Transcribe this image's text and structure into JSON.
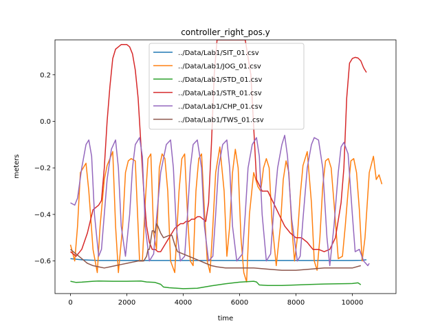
{
  "chart_data": {
    "type": "line",
    "title": "controller_right_pos.y",
    "xlabel": "time",
    "ylabel": "meters",
    "xlim": [
      -550,
      11550
    ],
    "ylim": [
      -0.74,
      0.35
    ],
    "xticks": [
      0,
      2000,
      4000,
      6000,
      8000,
      10000
    ],
    "xtick_labels": [
      "0",
      "2000",
      "4000",
      "6000",
      "8000",
      "10000"
    ],
    "yticks": [
      -0.6,
      -0.4,
      -0.2,
      0.0,
      0.2
    ],
    "ytick_labels": [
      "−0.6",
      "−0.4",
      "−0.2",
      "0.0",
      "0.2"
    ],
    "grid": false,
    "legend_position": "upper center",
    "series": [
      {
        "name": "../Data/Lab1/SIT_01.csv",
        "color": "#1f77b4",
        "x": [
          0,
          400,
          1000,
          2000,
          3000,
          4000,
          5000,
          6000,
          7000,
          8000,
          9000,
          10000,
          10300,
          10500
        ],
        "y": [
          -0.59,
          -0.595,
          -0.598,
          -0.598,
          -0.598,
          -0.598,
          -0.598,
          -0.598,
          -0.598,
          -0.598,
          -0.598,
          -0.598,
          -0.597,
          -0.595
        ]
      },
      {
        "name": "../Data/Lab1/JOG_01.csv",
        "color": "#ff7f0e",
        "x": [
          0,
          150,
          250,
          350,
          450,
          550,
          650,
          800,
          950,
          1050,
          1200,
          1300,
          1400,
          1500,
          1600,
          1700,
          1850,
          1950,
          2050,
          2150,
          2300,
          2450,
          2550,
          2650,
          2750,
          2850,
          2950,
          3050,
          3150,
          3250,
          3350,
          3450,
          3550,
          3700,
          3850,
          3950,
          4050,
          4150,
          4250,
          4350,
          4450,
          4550,
          4650,
          4750,
          4850,
          4950,
          5050,
          5150,
          5300,
          5450,
          5550,
          5650,
          5750,
          5850,
          5950,
          6050,
          6150,
          6250,
          6350,
          6500,
          6650,
          6750,
          6850,
          6950,
          7050,
          7150,
          7300,
          7450,
          7550,
          7650,
          7750,
          7850,
          7950,
          8050,
          8150,
          8250,
          8400,
          8550,
          8650,
          8750,
          8850,
          8950,
          9050,
          9150,
          9250,
          9350,
          9500,
          9650,
          9750,
          9850,
          9950,
          10050,
          10150,
          10250,
          10350,
          10450,
          10600,
          10750,
          10850,
          10950,
          11050
        ],
        "y": [
          -0.53,
          -0.6,
          -0.45,
          -0.22,
          -0.2,
          -0.18,
          -0.3,
          -0.55,
          -0.65,
          -0.45,
          -0.25,
          -0.19,
          -0.16,
          -0.13,
          -0.45,
          -0.65,
          -0.45,
          -0.22,
          -0.17,
          -0.16,
          -0.17,
          -0.6,
          -0.6,
          -0.35,
          -0.16,
          -0.14,
          -0.48,
          -0.55,
          -0.2,
          -0.14,
          -0.16,
          -0.3,
          -0.6,
          -0.65,
          -0.3,
          -0.16,
          -0.14,
          -0.4,
          -0.6,
          -0.62,
          -0.3,
          -0.16,
          -0.14,
          -0.38,
          -0.6,
          -0.65,
          -0.45,
          -0.22,
          -0.11,
          -0.3,
          -0.58,
          -0.45,
          -0.22,
          -0.12,
          -0.2,
          -0.5,
          -0.65,
          -0.69,
          -0.4,
          -0.22,
          -0.28,
          -0.3,
          -0.2,
          -0.16,
          -0.2,
          -0.43,
          -0.62,
          -0.45,
          -0.25,
          -0.17,
          -0.22,
          -0.45,
          -0.6,
          -0.5,
          -0.32,
          -0.19,
          -0.13,
          -0.35,
          -0.6,
          -0.64,
          -0.5,
          -0.28,
          -0.17,
          -0.16,
          -0.2,
          -0.35,
          -0.59,
          -0.58,
          -0.45,
          -0.3,
          -0.17,
          -0.16,
          -0.22,
          -0.38,
          -0.6,
          -0.5,
          -0.22,
          -0.15,
          -0.25,
          -0.23,
          -0.27
        ]
      },
      {
        "name": "../Data/Lab1/STD_01.csv",
        "color": "#2ca02c",
        "x": [
          0,
          200,
          400,
          600,
          800,
          1000,
          1500,
          2000,
          2500,
          2700,
          3000,
          3200,
          3300,
          3500,
          4000,
          4500,
          5000,
          5500,
          6000,
          6500,
          6600,
          6700,
          7000,
          7500,
          8000,
          8500,
          9000,
          9500,
          10000,
          10200,
          10300
        ],
        "y": [
          -0.687,
          -0.692,
          -0.691,
          -0.689,
          -0.687,
          -0.686,
          -0.687,
          -0.687,
          -0.686,
          -0.69,
          -0.692,
          -0.7,
          -0.712,
          -0.715,
          -0.719,
          -0.717,
          -0.707,
          -0.698,
          -0.691,
          -0.687,
          -0.69,
          -0.703,
          -0.705,
          -0.705,
          -0.703,
          -0.701,
          -0.699,
          -0.698,
          -0.697,
          -0.694,
          -0.702
        ]
      },
      {
        "name": "../Data/Lab1/STR_01.csv",
        "color": "#d62728",
        "x": [
          0,
          200,
          400,
          600,
          800,
          1000,
          1100,
          1200,
          1300,
          1400,
          1500,
          1600,
          1700,
          1800,
          1900,
          2000,
          2100,
          2200,
          2300,
          2400,
          2500,
          2600,
          2700,
          2800,
          2900,
          3000,
          3100,
          3200,
          3300,
          3400,
          3500,
          3600,
          3700,
          3800,
          3900,
          4000,
          4100,
          4200,
          4300,
          4400,
          4500,
          4600,
          4700,
          4800,
          4900,
          5000,
          5100,
          5200,
          5300,
          5400,
          5500,
          5600,
          5800,
          6000,
          6200,
          6400,
          6600,
          6800,
          7000,
          7200,
          7400,
          7600,
          7800,
          8000,
          8200,
          8400,
          8600,
          8800,
          9000,
          9200,
          9400,
          9600,
          9700,
          9800,
          9900,
          10000,
          10100,
          10200,
          10300,
          10400,
          10500
        ],
        "y": [
          -0.56,
          -0.58,
          -0.55,
          -0.48,
          -0.38,
          -0.36,
          -0.34,
          -0.2,
          0.0,
          0.15,
          0.27,
          0.31,
          0.32,
          0.33,
          0.33,
          0.33,
          0.32,
          0.29,
          0.22,
          0.1,
          -0.1,
          -0.3,
          -0.45,
          -0.52,
          -0.55,
          -0.55,
          -0.56,
          -0.56,
          -0.54,
          -0.52,
          -0.5,
          -0.48,
          -0.46,
          -0.45,
          -0.44,
          -0.44,
          -0.43,
          -0.43,
          -0.42,
          -0.42,
          -0.41,
          -0.41,
          -0.42,
          -0.43,
          -0.35,
          -0.1,
          0.2,
          0.35,
          0.35,
          0.35,
          0.35,
          0.35,
          0.35,
          0.35,
          0.35,
          0.2,
          -0.25,
          -0.3,
          -0.3,
          -0.35,
          -0.4,
          -0.45,
          -0.48,
          -0.5,
          -0.5,
          -0.52,
          -0.55,
          -0.55,
          -0.56,
          -0.55,
          -0.5,
          -0.35,
          -0.2,
          0.1,
          0.25,
          0.27,
          0.275,
          0.272,
          0.26,
          0.23,
          0.21
        ]
      },
      {
        "name": "../Data/Lab1/CHP_01.csv",
        "color": "#9467bd",
        "x": [
          0,
          150,
          250,
          400,
          550,
          650,
          750,
          850,
          1000,
          1100,
          1200,
          1300,
          1450,
          1600,
          1700,
          1800,
          1950,
          2100,
          2200,
          2300,
          2450,
          2550,
          2650,
          2800,
          2950,
          3050,
          3200,
          3400,
          3550,
          3650,
          3750,
          3900,
          4050,
          4150,
          4250,
          4350,
          4500,
          4650,
          4750,
          4900,
          5050,
          5150,
          5250,
          5400,
          5550,
          5650,
          5750,
          5900,
          6100,
          6200,
          6300,
          6450,
          6600,
          6700,
          6800,
          6950,
          7100,
          7200,
          7350,
          7500,
          7600,
          7700,
          7850,
          8050,
          8150,
          8250,
          8400,
          8550,
          8650,
          8800,
          8950,
          9100,
          9200,
          9350,
          9500,
          9600,
          9700,
          9850,
          10000,
          10100,
          10250,
          10400,
          10550,
          10600
        ],
        "y": [
          -0.35,
          -0.36,
          -0.33,
          -0.2,
          -0.1,
          -0.08,
          -0.15,
          -0.4,
          -0.58,
          -0.55,
          -0.4,
          -0.25,
          -0.12,
          -0.08,
          -0.2,
          -0.45,
          -0.58,
          -0.4,
          -0.2,
          -0.1,
          -0.07,
          -0.15,
          -0.45,
          -0.6,
          -0.57,
          -0.42,
          -0.22,
          -0.1,
          -0.08,
          -0.2,
          -0.45,
          -0.6,
          -0.58,
          -0.4,
          -0.2,
          -0.1,
          -0.08,
          -0.2,
          -0.45,
          -0.6,
          -0.58,
          -0.4,
          -0.2,
          -0.1,
          -0.08,
          -0.2,
          -0.45,
          -0.6,
          -0.57,
          -0.4,
          -0.2,
          -0.1,
          -0.07,
          -0.15,
          -0.4,
          -0.6,
          -0.57,
          -0.4,
          -0.2,
          -0.1,
          -0.06,
          -0.15,
          -0.42,
          -0.6,
          -0.58,
          -0.42,
          -0.2,
          -0.1,
          -0.07,
          -0.08,
          -0.2,
          -0.5,
          -0.62,
          -0.45,
          -0.22,
          -0.11,
          -0.09,
          -0.14,
          -0.4,
          -0.56,
          -0.55,
          -0.6,
          -0.62,
          -0.61
        ]
      },
      {
        "name": "../Data/Lab1/TWS_01.csv",
        "color": "#8c564b",
        "x": [
          0,
          200,
          400,
          600,
          800,
          1000,
          1200,
          1400,
          1600,
          1800,
          2000,
          2200,
          2400,
          2600,
          2700,
          2750,
          2800,
          2900,
          2950,
          3000,
          3050,
          3100,
          3200,
          3300,
          3500,
          3600,
          3700,
          3800,
          4000,
          4200,
          4400,
          4600,
          4800,
          5000,
          5200,
          5500,
          6000,
          6500,
          7000,
          7500,
          8000,
          8500,
          9000,
          9500,
          10000,
          10300
        ],
        "y": [
          -0.55,
          -0.57,
          -0.59,
          -0.61,
          -0.62,
          -0.625,
          -0.63,
          -0.625,
          -0.62,
          -0.615,
          -0.61,
          -0.605,
          -0.6,
          -0.6,
          -0.58,
          -0.55,
          -0.55,
          -0.47,
          -0.47,
          -0.48,
          -0.44,
          -0.45,
          -0.48,
          -0.5,
          -0.49,
          -0.49,
          -0.53,
          -0.56,
          -0.57,
          -0.58,
          -0.59,
          -0.6,
          -0.61,
          -0.62,
          -0.625,
          -0.63,
          -0.63,
          -0.63,
          -0.635,
          -0.64,
          -0.64,
          -0.635,
          -0.63,
          -0.63,
          -0.63,
          -0.62
        ]
      }
    ]
  }
}
